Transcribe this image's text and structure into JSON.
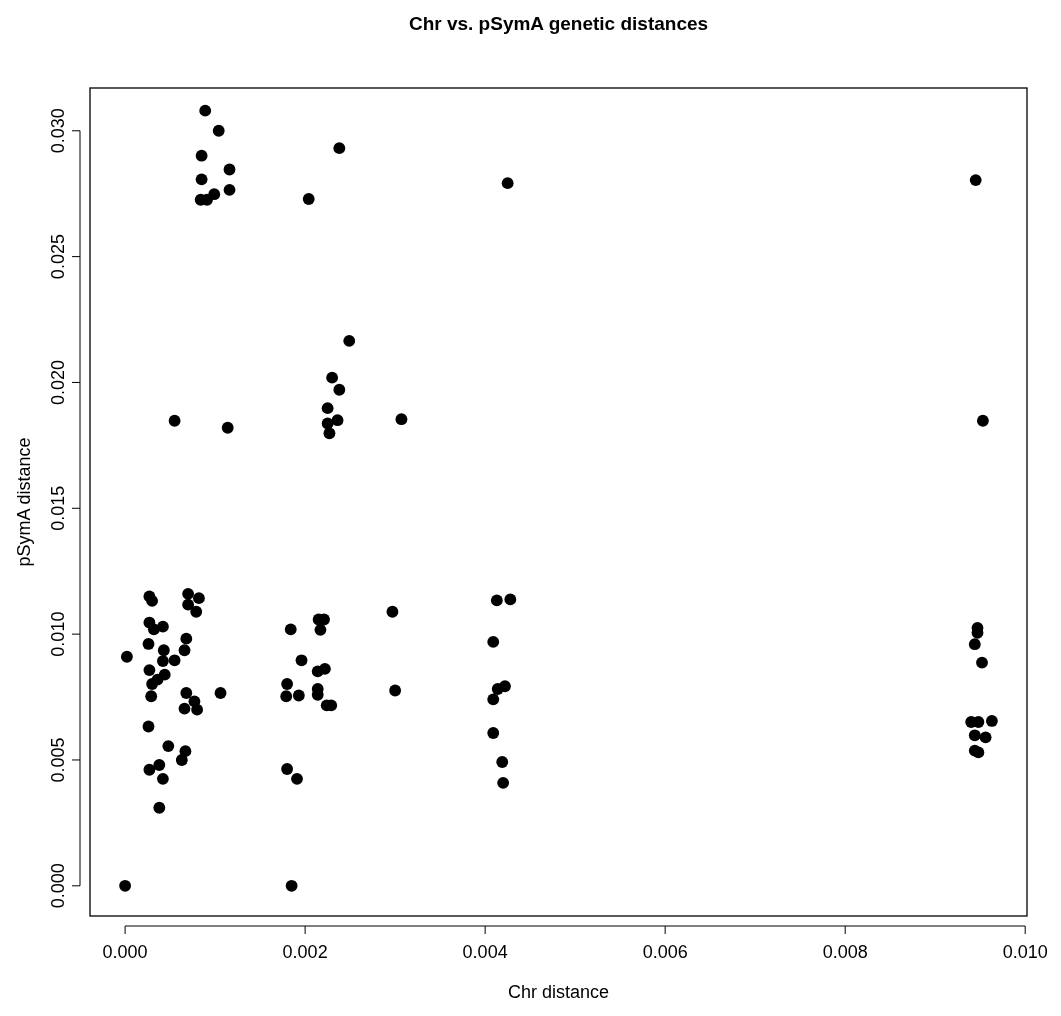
{
  "chart_data": {
    "type": "scatter",
    "title": "Chr vs. pSymA genetic distances",
    "xlabel": "Chr distance",
    "ylabel": "pSymA distance",
    "xlim": [
      -0.00039,
      0.01002
    ],
    "ylim": [
      -0.0012,
      0.0317
    ],
    "xticks": [
      {
        "value": 0,
        "label": "0.000"
      },
      {
        "value": 0.002,
        "label": "0.002"
      },
      {
        "value": 0.004,
        "label": "0.004"
      },
      {
        "value": 0.006,
        "label": "0.006"
      },
      {
        "value": 0.008,
        "label": "0.008"
      },
      {
        "value": 0.01,
        "label": "0.010"
      }
    ],
    "yticks": [
      {
        "value": 0,
        "label": "0.000"
      },
      {
        "value": 0.005,
        "label": "0.005"
      },
      {
        "value": 0.01,
        "label": "0.010"
      },
      {
        "value": 0.015,
        "label": "0.015"
      },
      {
        "value": 0.02,
        "label": "0.020"
      },
      {
        "value": 0.025,
        "label": "0.025"
      },
      {
        "value": 0.03,
        "label": "0.030"
      }
    ],
    "grid": false,
    "marker": "circle",
    "series": [
      {
        "color": "#000000",
        "x": [
          0.00027,
          0.0003,
          0.0007,
          0.00082,
          0.0007,
          0.00079,
          0.00027,
          0.00032,
          0.00042,
          0.00068,
          0.00026,
          2e-05,
          0.00043,
          0.00066,
          0.00042,
          0.00055,
          0.00027,
          0.00044,
          0.00036,
          0.0003,
          0.00029,
          0.00068,
          0.00106,
          0.00077,
          0.00066,
          0.0008,
          0.00026,
          0.00048,
          0.00067,
          0.00063,
          0.00027,
          0.00038,
          0.00042,
          0.00038,
          0.0,
          0.00184,
          0.00215,
          0.00221,
          0.00217,
          0.00297,
          0.00413,
          0.00428,
          0.00409,
          0.00196,
          0.00214,
          0.00222,
          0.0018,
          0.00179,
          0.00193,
          0.00214,
          0.00214,
          0.00224,
          0.00229,
          0.003,
          0.00422,
          0.00414,
          0.00409,
          0.00409,
          0.00419,
          0.0042,
          0.0018,
          0.00191,
          0.00185,
          0.00089,
          0.00104,
          0.00085,
          0.00116,
          0.00085,
          0.00116,
          0.00099,
          0.00084,
          0.00091,
          0.00238,
          0.00204,
          0.00425,
          0.00249,
          0.0023,
          0.00238,
          0.00225,
          0.00236,
          0.00225,
          0.00227,
          0.00307,
          0.00114,
          0.00055,
          0.00945,
          0.00953,
          0.00947,
          0.00947,
          0.00944,
          0.00952,
          0.0094,
          0.00948,
          0.00963,
          0.00944,
          0.00956,
          0.00944,
          0.00948
        ],
        "values": [
          0.0115,
          0.01132,
          0.0116,
          0.01143,
          0.01117,
          0.01089,
          0.01046,
          0.01019,
          0.0103,
          0.00982,
          0.00961,
          0.0091,
          0.00936,
          0.00936,
          0.00893,
          0.00896,
          0.00857,
          0.00839,
          0.00819,
          0.00802,
          0.00753,
          0.00766,
          0.00766,
          0.00733,
          0.00704,
          0.007,
          0.00633,
          0.00555,
          0.00535,
          0.005,
          0.00461,
          0.0048,
          0.00425,
          0.0031,
          0.0,
          0.01019,
          0.01058,
          0.01058,
          0.01017,
          0.01089,
          0.01134,
          0.01138,
          0.00969,
          0.00896,
          0.00852,
          0.00862,
          0.00802,
          0.00753,
          0.00756,
          0.00782,
          0.00759,
          0.00717,
          0.00717,
          0.00776,
          0.00793,
          0.00782,
          0.00741,
          0.00607,
          0.00492,
          0.00409,
          0.00464,
          0.00425,
          0.0,
          0.0308,
          0.03,
          0.02901,
          0.02846,
          0.02807,
          0.02765,
          0.02748,
          0.02726,
          0.02726,
          0.02931,
          0.02729,
          0.02792,
          0.02165,
          0.02019,
          0.01971,
          0.01898,
          0.0185,
          0.01837,
          0.01798,
          0.01854,
          0.0182,
          0.01848,
          0.02804,
          0.01848,
          0.01025,
          0.01005,
          0.0096,
          0.00887,
          0.00651,
          0.00651,
          0.00655,
          0.00598,
          0.0059,
          0.00537,
          0.0053
        ]
      }
    ]
  }
}
